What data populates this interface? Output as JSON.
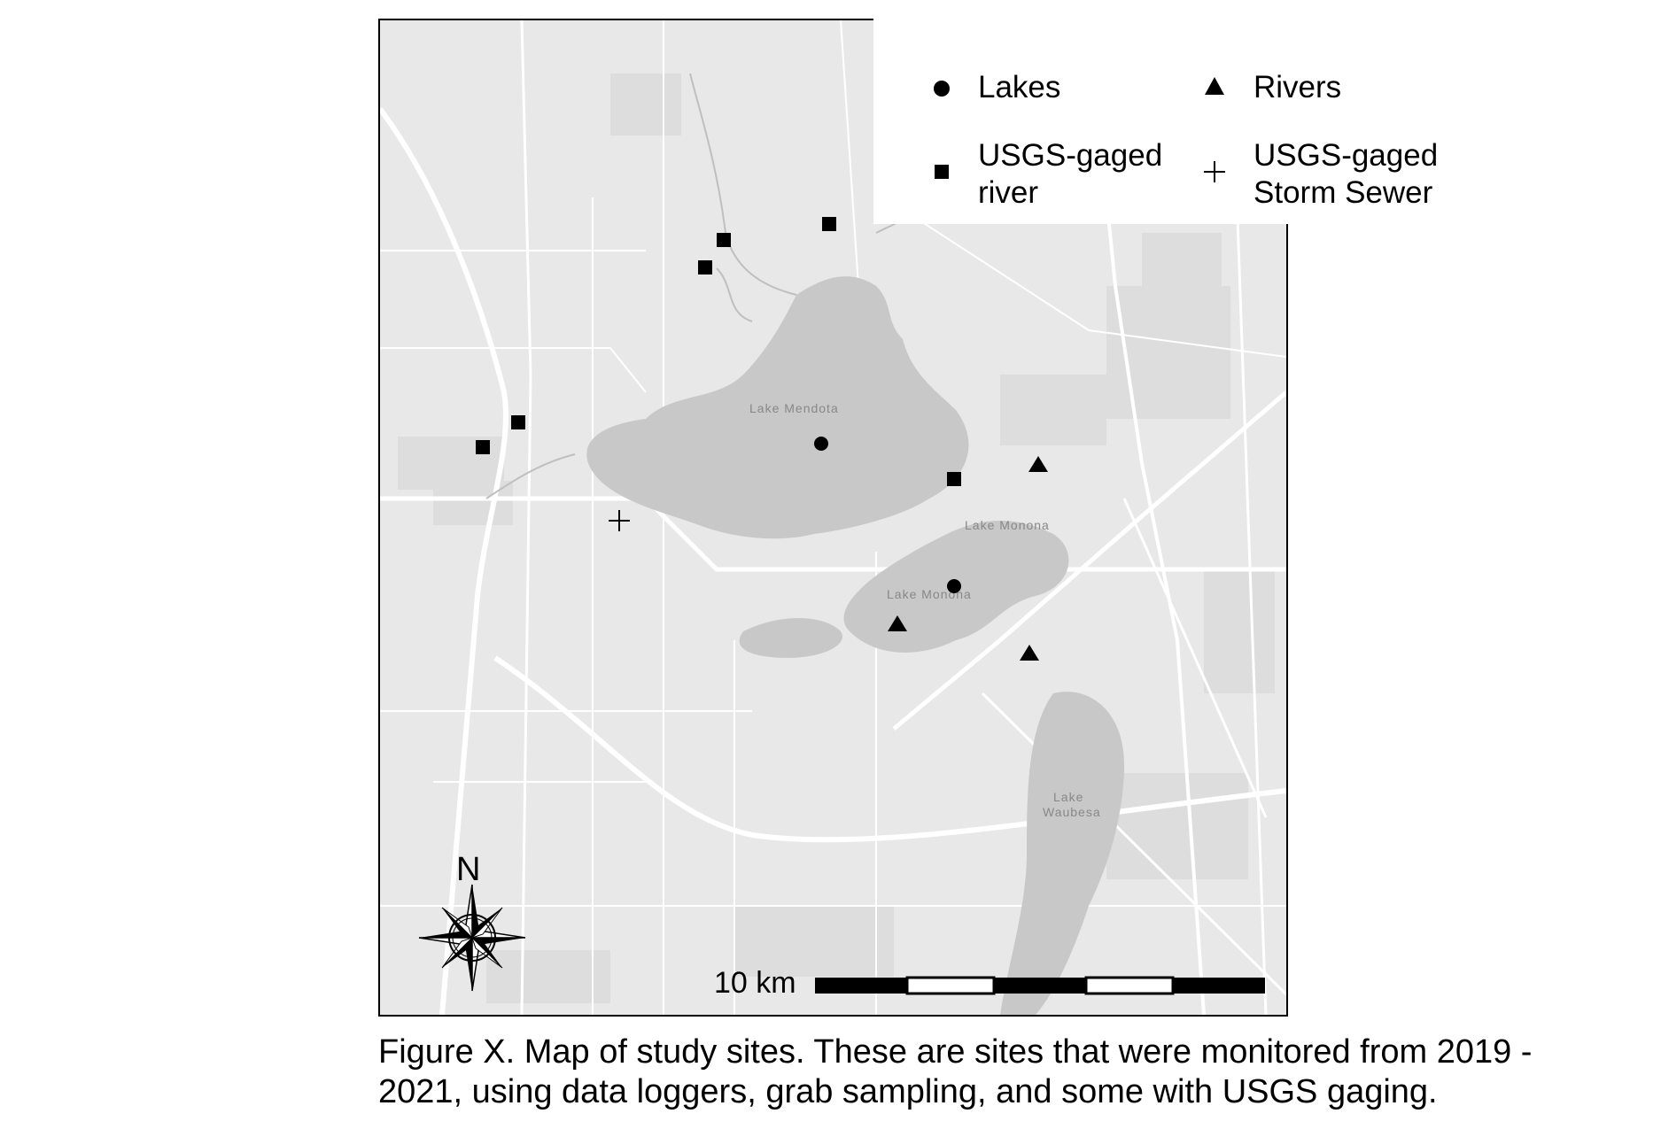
{
  "legend": {
    "items": [
      {
        "label_line1": "Lakes",
        "label_line2": "",
        "symbol": "circle",
        "icon": "circle-marker-icon"
      },
      {
        "label_line1": "Rivers",
        "label_line2": "",
        "symbol": "triangle",
        "icon": "triangle-marker-icon"
      },
      {
        "label_line1": "USGS-gaged",
        "label_line2": "river",
        "symbol": "square",
        "icon": "square-marker-icon"
      },
      {
        "label_line1": "USGS-gaged",
        "label_line2": "Storm Sewer",
        "symbol": "plus",
        "icon": "plus-marker-icon"
      }
    ]
  },
  "map": {
    "lake_labels": {
      "mendota": "Lake Mendota",
      "monona": "Lake Monona",
      "wingra": "Lake Monona",
      "waubesa_line1": "Lake",
      "waubesa_line2": "Waubesa"
    },
    "colors": {
      "land": "#e8e8e8",
      "water": "#c8c8c8",
      "road": "#ffffff",
      "marker": "#000000"
    }
  },
  "north_arrow": {
    "letter": "N",
    "icon": "compass-rose-icon"
  },
  "scale_bar": {
    "label": "10 km"
  },
  "caption": {
    "line1": "Figure X. Map of study sites. These are sites that were monitored from 2019 -",
    "line2": "2021, using data loggers, grab sampling, and some with USGS gaging."
  }
}
